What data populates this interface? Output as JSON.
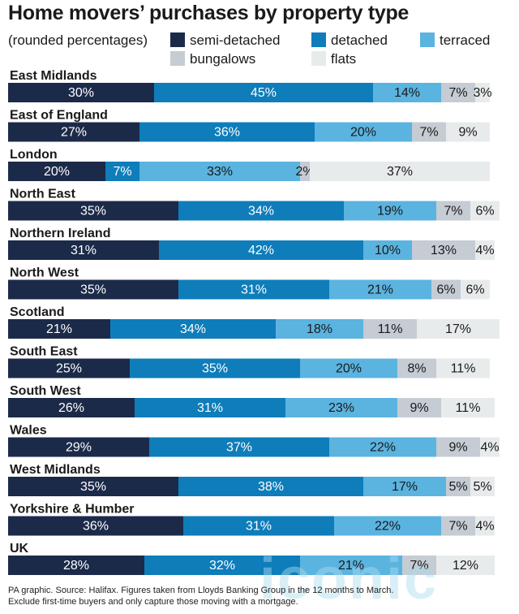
{
  "title": "Home movers’ purchases by property type",
  "subtitle": "(rounded percentages)",
  "footnote": {
    "line1": "PA graphic. Source: Halifax. Figures taken from Lloyds Banking Group in the 12 months to March.",
    "line2": "Exclude first-time buyers and only capture those moving with a mortgage."
  },
  "watermark": "iconic",
  "colors": {
    "semi_detached": "#1c2a4a",
    "detached": "#0e7dba",
    "terraced": "#5bb3e0",
    "bungalows": "#c5ccd3",
    "flats": "#e8ebec"
  },
  "legend": [
    {
      "key": "semi_detached",
      "label": "semi-detached"
    },
    {
      "key": "detached",
      "label": "detached"
    },
    {
      "key": "terraced",
      "label": "terraced"
    },
    {
      "key": "bungalows",
      "label": "bungalows"
    },
    {
      "key": "flats",
      "label": "flats"
    }
  ],
  "chart_data": {
    "type": "bar",
    "orientation": "horizontal",
    "stacked": true,
    "unit": "%",
    "categories": [
      "East Midlands",
      "East of England",
      "London",
      "North East",
      "Northern Ireland",
      "North West",
      "Scotland",
      "South East",
      "South West",
      "Wales",
      "West Midlands",
      "Yorkshire & Humber",
      "UK"
    ],
    "series": [
      {
        "name": "semi-detached",
        "values": [
          30,
          27,
          20,
          35,
          31,
          35,
          21,
          25,
          26,
          29,
          35,
          36,
          28
        ]
      },
      {
        "name": "detached",
        "values": [
          45,
          36,
          7,
          34,
          42,
          31,
          34,
          35,
          31,
          37,
          38,
          31,
          32
        ]
      },
      {
        "name": "terraced",
        "values": [
          14,
          20,
          33,
          19,
          10,
          21,
          18,
          20,
          23,
          22,
          17,
          22,
          21
        ]
      },
      {
        "name": "bungalows",
        "values": [
          7,
          7,
          2,
          7,
          13,
          6,
          11,
          8,
          9,
          9,
          5,
          7,
          7
        ]
      },
      {
        "name": "flats",
        "values": [
          3,
          9,
          37,
          6,
          4,
          6,
          17,
          11,
          11,
          4,
          5,
          4,
          12
        ]
      }
    ],
    "legend_position": "top"
  }
}
